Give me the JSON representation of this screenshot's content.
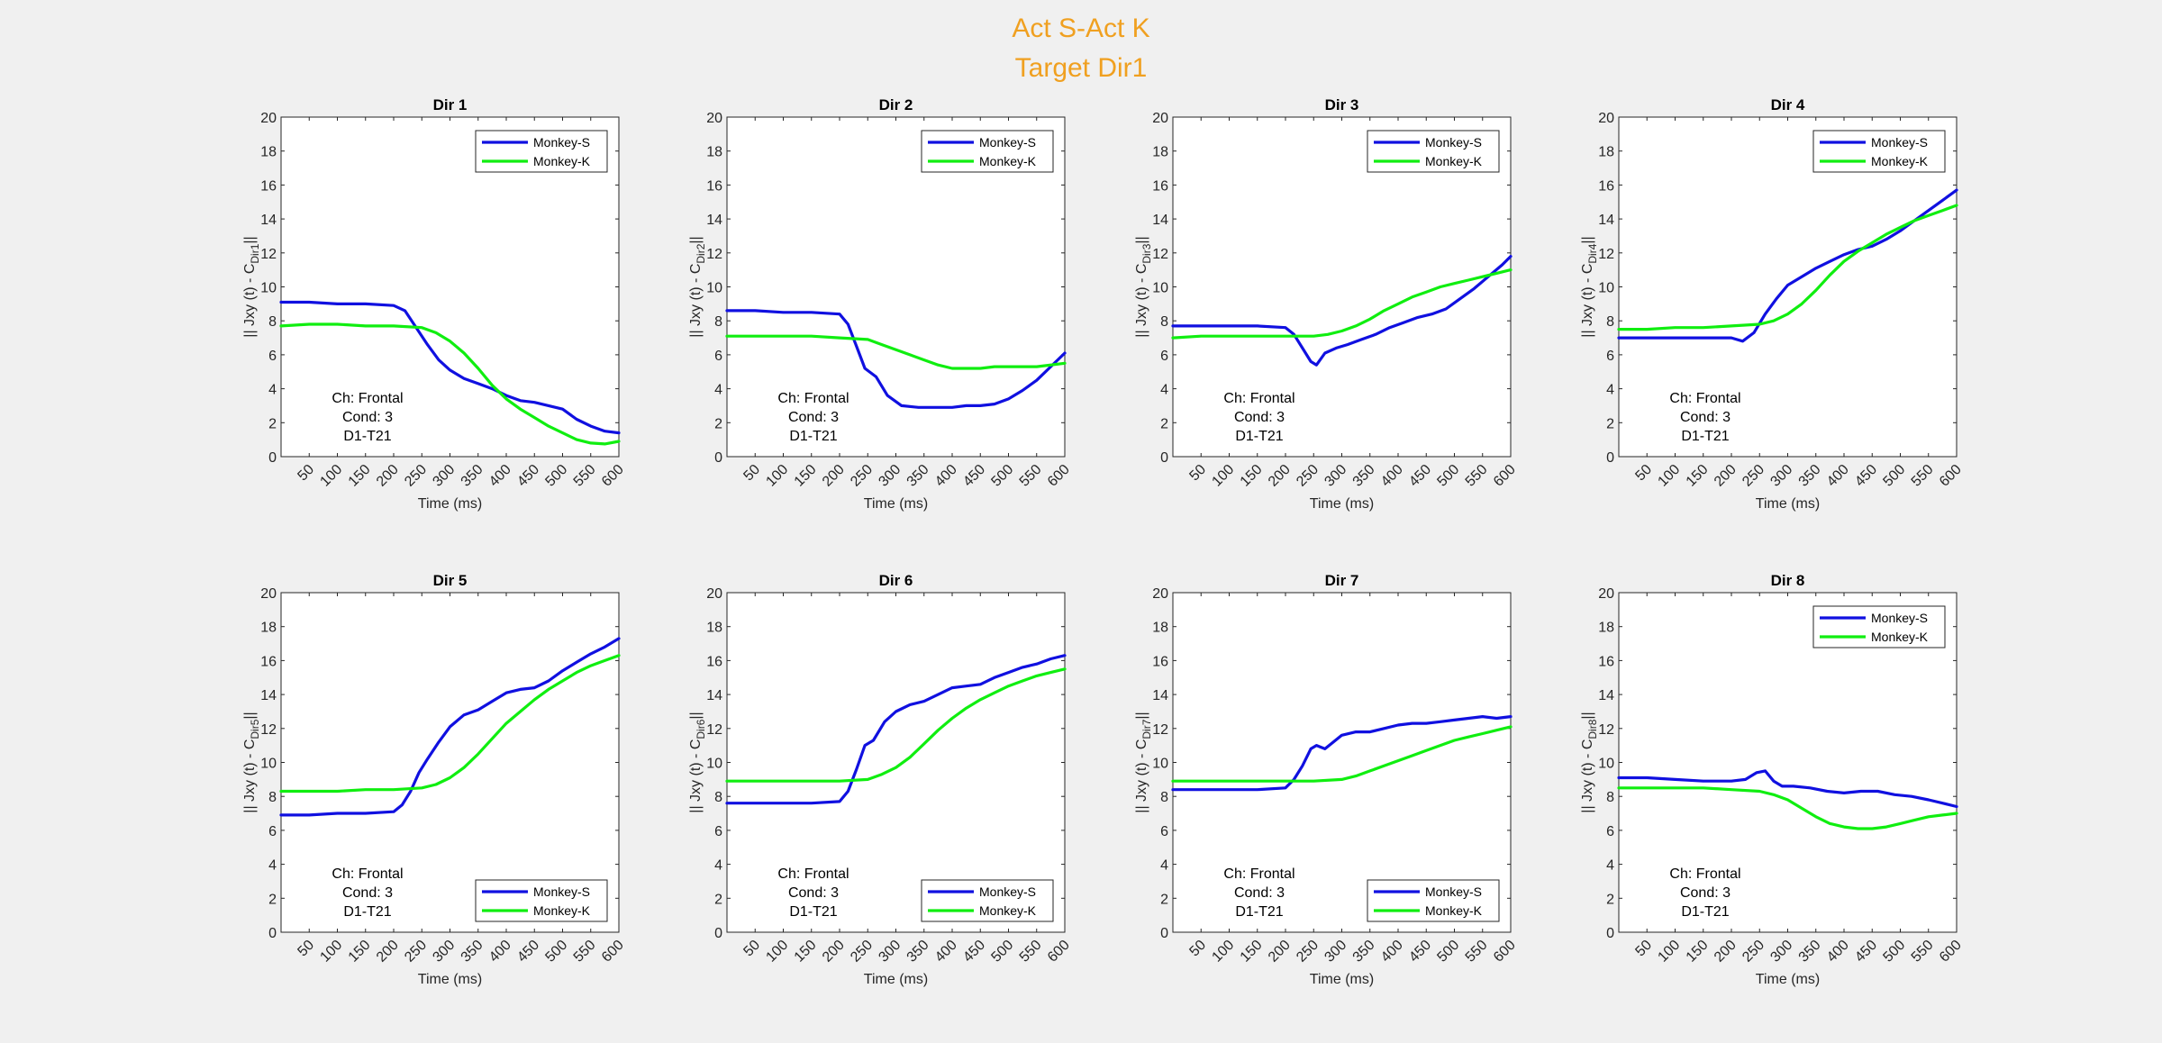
{
  "suptitle": {
    "line1": "Act S-Act K",
    "line2": "Target Dir1",
    "color": "#f0a020"
  },
  "colors": {
    "monkey_s": "#1010e0",
    "monkey_k": "#10ee10"
  },
  "chart_data": [
    {
      "type": "line",
      "title": "Dir 1",
      "xlabel": "Time (ms)",
      "ylabel_prefix": "|| Jxy (t) - C",
      "ylabel_sub": "Dir1",
      "ylabel_suffix": "||",
      "xlim": [
        0,
        600
      ],
      "ylim": [
        0,
        20
      ],
      "xticks": [
        50,
        100,
        150,
        200,
        250,
        300,
        350,
        400,
        450,
        500,
        550,
        600
      ],
      "yticks": [
        0,
        2,
        4,
        6,
        8,
        10,
        12,
        14,
        16,
        18,
        20
      ],
      "legend_loc": "top-right",
      "annotation": [
        "Ch: Frontal",
        "Cond: 3",
        "D1-T21"
      ],
      "series": [
        {
          "name": "Monkey-S",
          "x": [
            0,
            50,
            100,
            150,
            200,
            220,
            240,
            260,
            280,
            300,
            325,
            350,
            375,
            400,
            425,
            450,
            475,
            500,
            525,
            550,
            575,
            600
          ],
          "y": [
            9.1,
            9.1,
            9.0,
            9.0,
            8.9,
            8.6,
            7.6,
            6.6,
            5.7,
            5.1,
            4.6,
            4.3,
            4.0,
            3.6,
            3.3,
            3.2,
            3.0,
            2.8,
            2.2,
            1.8,
            1.5,
            1.4
          ]
        },
        {
          "name": "Monkey-K",
          "x": [
            0,
            50,
            100,
            150,
            200,
            250,
            275,
            300,
            325,
            350,
            375,
            400,
            425,
            450,
            475,
            500,
            525,
            550,
            575,
            600
          ],
          "y": [
            7.7,
            7.8,
            7.8,
            7.7,
            7.7,
            7.6,
            7.3,
            6.8,
            6.1,
            5.2,
            4.2,
            3.4,
            2.8,
            2.3,
            1.8,
            1.4,
            1.0,
            0.8,
            0.75,
            0.9
          ]
        }
      ]
    },
    {
      "type": "line",
      "title": "Dir 2",
      "xlabel": "Time (ms)",
      "ylabel_prefix": "|| Jxy (t) - C",
      "ylabel_sub": "Dir2",
      "ylabel_suffix": "||",
      "xlim": [
        0,
        600
      ],
      "ylim": [
        0,
        20
      ],
      "xticks": [
        50,
        100,
        150,
        200,
        250,
        300,
        350,
        400,
        450,
        500,
        550,
        600
      ],
      "yticks": [
        0,
        2,
        4,
        6,
        8,
        10,
        12,
        14,
        16,
        18,
        20
      ],
      "legend_loc": "top-right",
      "annotation": [
        "Ch: Frontal",
        "Cond: 3",
        "D1-T21"
      ],
      "series": [
        {
          "name": "Monkey-S",
          "x": [
            0,
            50,
            100,
            150,
            200,
            215,
            230,
            245,
            265,
            285,
            310,
            340,
            370,
            400,
            425,
            450,
            475,
            500,
            525,
            550,
            575,
            600
          ],
          "y": [
            8.6,
            8.6,
            8.5,
            8.5,
            8.4,
            7.8,
            6.5,
            5.2,
            4.7,
            3.6,
            3.0,
            2.9,
            2.9,
            2.9,
            3.0,
            3.0,
            3.1,
            3.4,
            3.9,
            4.5,
            5.3,
            6.1
          ]
        },
        {
          "name": "Monkey-K",
          "x": [
            0,
            50,
            100,
            150,
            200,
            250,
            275,
            300,
            325,
            350,
            375,
            400,
            425,
            450,
            475,
            500,
            550,
            600
          ],
          "y": [
            7.1,
            7.1,
            7.1,
            7.1,
            7.0,
            6.9,
            6.6,
            6.3,
            6.0,
            5.7,
            5.4,
            5.2,
            5.2,
            5.2,
            5.3,
            5.3,
            5.3,
            5.5
          ]
        }
      ]
    },
    {
      "type": "line",
      "title": "Dir 3",
      "xlabel": "Time (ms)",
      "ylabel_prefix": "|| Jxy (t) - C",
      "ylabel_sub": "Dir3",
      "ylabel_suffix": "||",
      "xlim": [
        0,
        600
      ],
      "ylim": [
        0,
        20
      ],
      "xticks": [
        50,
        100,
        150,
        200,
        250,
        300,
        350,
        400,
        450,
        500,
        550,
        600
      ],
      "yticks": [
        0,
        2,
        4,
        6,
        8,
        10,
        12,
        14,
        16,
        18,
        20
      ],
      "legend_loc": "top-right",
      "annotation": [
        "Ch: Frontal",
        "Cond: 3",
        "D1-T21"
      ],
      "series": [
        {
          "name": "Monkey-S",
          "x": [
            0,
            50,
            100,
            150,
            200,
            215,
            230,
            245,
            255,
            270,
            290,
            310,
            335,
            360,
            385,
            410,
            435,
            460,
            485,
            510,
            535,
            560,
            585,
            600
          ],
          "y": [
            7.7,
            7.7,
            7.7,
            7.7,
            7.6,
            7.2,
            6.4,
            5.6,
            5.4,
            6.1,
            6.4,
            6.6,
            6.9,
            7.2,
            7.6,
            7.9,
            8.2,
            8.4,
            8.7,
            9.3,
            9.9,
            10.6,
            11.3,
            11.8
          ]
        },
        {
          "name": "Monkey-K",
          "x": [
            0,
            50,
            100,
            150,
            200,
            250,
            275,
            300,
            325,
            350,
            375,
            400,
            425,
            450,
            475,
            500,
            525,
            550,
            575,
            600
          ],
          "y": [
            7.0,
            7.1,
            7.1,
            7.1,
            7.1,
            7.1,
            7.2,
            7.4,
            7.7,
            8.1,
            8.6,
            9.0,
            9.4,
            9.7,
            10.0,
            10.2,
            10.4,
            10.6,
            10.8,
            11.0
          ]
        }
      ]
    },
    {
      "type": "line",
      "title": "Dir 4",
      "xlabel": "Time (ms)",
      "ylabel_prefix": "|| Jxy (t) - C",
      "ylabel_sub": "Dir4",
      "ylabel_suffix": "||",
      "xlim": [
        0,
        600
      ],
      "ylim": [
        0,
        20
      ],
      "xticks": [
        50,
        100,
        150,
        200,
        250,
        300,
        350,
        400,
        450,
        500,
        550,
        600
      ],
      "yticks": [
        0,
        2,
        4,
        6,
        8,
        10,
        12,
        14,
        16,
        18,
        20
      ],
      "legend_loc": "top-right",
      "annotation": [
        "Ch: Frontal",
        "Cond: 3",
        "D1-T21"
      ],
      "series": [
        {
          "name": "Monkey-S",
          "x": [
            0,
            50,
            100,
            150,
            200,
            220,
            240,
            260,
            280,
            300,
            325,
            350,
            375,
            400,
            425,
            450,
            475,
            500,
            525,
            550,
            575,
            600
          ],
          "y": [
            7.0,
            7.0,
            7.0,
            7.0,
            7.0,
            6.8,
            7.3,
            8.4,
            9.3,
            10.1,
            10.6,
            11.1,
            11.5,
            11.9,
            12.2,
            12.4,
            12.8,
            13.3,
            13.9,
            14.5,
            15.1,
            15.7
          ]
        },
        {
          "name": "Monkey-K",
          "x": [
            0,
            50,
            100,
            150,
            200,
            250,
            275,
            300,
            325,
            350,
            375,
            400,
            425,
            450,
            475,
            500,
            525,
            550,
            575,
            600
          ],
          "y": [
            7.5,
            7.5,
            7.6,
            7.6,
            7.7,
            7.8,
            8.0,
            8.4,
            9.0,
            9.8,
            10.7,
            11.5,
            12.1,
            12.6,
            13.1,
            13.5,
            13.9,
            14.2,
            14.5,
            14.8
          ]
        }
      ]
    },
    {
      "type": "line",
      "title": "Dir 5",
      "xlabel": "Time (ms)",
      "ylabel_prefix": "|| Jxy (t) - C",
      "ylabel_sub": "Dir5",
      "ylabel_suffix": "||",
      "xlim": [
        0,
        600
      ],
      "ylim": [
        0,
        20
      ],
      "xticks": [
        50,
        100,
        150,
        200,
        250,
        300,
        350,
        400,
        450,
        500,
        550,
        600
      ],
      "yticks": [
        0,
        2,
        4,
        6,
        8,
        10,
        12,
        14,
        16,
        18,
        20
      ],
      "legend_loc": "bottom-right",
      "annotation": [
        "Ch: Frontal",
        "Cond: 3",
        "D1-T21"
      ],
      "series": [
        {
          "name": "Monkey-S",
          "x": [
            0,
            50,
            100,
            150,
            200,
            215,
            230,
            245,
            260,
            280,
            300,
            325,
            350,
            375,
            400,
            425,
            450,
            475,
            500,
            525,
            550,
            575,
            600
          ],
          "y": [
            6.9,
            6.9,
            7.0,
            7.0,
            7.1,
            7.5,
            8.3,
            9.4,
            10.2,
            11.2,
            12.1,
            12.8,
            13.1,
            13.6,
            14.1,
            14.3,
            14.4,
            14.8,
            15.4,
            15.9,
            16.4,
            16.8,
            17.3
          ]
        },
        {
          "name": "Monkey-K",
          "x": [
            0,
            50,
            100,
            150,
            200,
            250,
            275,
            300,
            325,
            350,
            375,
            400,
            425,
            450,
            475,
            500,
            525,
            550,
            575,
            600
          ],
          "y": [
            8.3,
            8.3,
            8.3,
            8.4,
            8.4,
            8.5,
            8.7,
            9.1,
            9.7,
            10.5,
            11.4,
            12.3,
            13.0,
            13.7,
            14.3,
            14.8,
            15.3,
            15.7,
            16.0,
            16.3
          ]
        }
      ]
    },
    {
      "type": "line",
      "title": "Dir 6",
      "xlabel": "Time (ms)",
      "ylabel_prefix": "|| Jxy (t) - C",
      "ylabel_sub": "Dir6",
      "ylabel_suffix": "||",
      "xlim": [
        0,
        600
      ],
      "ylim": [
        0,
        20
      ],
      "xticks": [
        50,
        100,
        150,
        200,
        250,
        300,
        350,
        400,
        450,
        500,
        550,
        600
      ],
      "yticks": [
        0,
        2,
        4,
        6,
        8,
        10,
        12,
        14,
        16,
        18,
        20
      ],
      "legend_loc": "bottom-right",
      "annotation": [
        "Ch: Frontal",
        "Cond: 3",
        "D1-T21"
      ],
      "series": [
        {
          "name": "Monkey-S",
          "x": [
            0,
            50,
            100,
            150,
            200,
            215,
            230,
            245,
            260,
            280,
            300,
            325,
            350,
            375,
            400,
            425,
            450,
            475,
            500,
            525,
            550,
            575,
            600
          ],
          "y": [
            7.6,
            7.6,
            7.6,
            7.6,
            7.7,
            8.3,
            9.6,
            11.0,
            11.3,
            12.4,
            13.0,
            13.4,
            13.6,
            14.0,
            14.4,
            14.5,
            14.6,
            15.0,
            15.3,
            15.6,
            15.8,
            16.1,
            16.3
          ]
        },
        {
          "name": "Monkey-K",
          "x": [
            0,
            50,
            100,
            150,
            200,
            250,
            275,
            300,
            325,
            350,
            375,
            400,
            425,
            450,
            475,
            500,
            525,
            550,
            575,
            600
          ],
          "y": [
            8.9,
            8.9,
            8.9,
            8.9,
            8.9,
            9.0,
            9.3,
            9.7,
            10.3,
            11.1,
            11.9,
            12.6,
            13.2,
            13.7,
            14.1,
            14.5,
            14.8,
            15.1,
            15.3,
            15.5
          ]
        }
      ]
    },
    {
      "type": "line",
      "title": "Dir 7",
      "xlabel": "Time (ms)",
      "ylabel_prefix": "|| Jxy (t) - C",
      "ylabel_sub": "Dir7",
      "ylabel_suffix": "||",
      "xlim": [
        0,
        600
      ],
      "ylim": [
        0,
        20
      ],
      "xticks": [
        50,
        100,
        150,
        200,
        250,
        300,
        350,
        400,
        450,
        500,
        550,
        600
      ],
      "yticks": [
        0,
        2,
        4,
        6,
        8,
        10,
        12,
        14,
        16,
        18,
        20
      ],
      "legend_loc": "bottom-right",
      "annotation": [
        "Ch: Frontal",
        "Cond: 3",
        "D1-T21"
      ],
      "series": [
        {
          "name": "Monkey-S",
          "x": [
            0,
            50,
            100,
            150,
            200,
            215,
            230,
            245,
            255,
            270,
            285,
            300,
            325,
            350,
            375,
            400,
            425,
            450,
            475,
            500,
            525,
            550,
            575,
            600
          ],
          "y": [
            8.4,
            8.4,
            8.4,
            8.4,
            8.5,
            9.0,
            9.8,
            10.8,
            11.0,
            10.8,
            11.2,
            11.6,
            11.8,
            11.8,
            12.0,
            12.2,
            12.3,
            12.3,
            12.4,
            12.5,
            12.6,
            12.7,
            12.6,
            12.7
          ]
        },
        {
          "name": "Monkey-K",
          "x": [
            0,
            50,
            100,
            150,
            200,
            250,
            300,
            325,
            350,
            375,
            400,
            425,
            450,
            475,
            500,
            525,
            550,
            575,
            600
          ],
          "y": [
            8.9,
            8.9,
            8.9,
            8.9,
            8.9,
            8.9,
            9.0,
            9.2,
            9.5,
            9.8,
            10.1,
            10.4,
            10.7,
            11.0,
            11.3,
            11.5,
            11.7,
            11.9,
            12.1
          ]
        }
      ]
    },
    {
      "type": "line",
      "title": "Dir 8",
      "xlabel": "Time (ms)",
      "ylabel_prefix": "|| Jxy (t) - C",
      "ylabel_sub": "Dir8",
      "ylabel_suffix": "||",
      "xlim": [
        0,
        600
      ],
      "ylim": [
        0,
        20
      ],
      "xticks": [
        50,
        100,
        150,
        200,
        250,
        300,
        350,
        400,
        450,
        500,
        550,
        600
      ],
      "yticks": [
        0,
        2,
        4,
        6,
        8,
        10,
        12,
        14,
        16,
        18,
        20
      ],
      "legend_loc": "top-right",
      "annotation": [
        "Ch: Frontal",
        "Cond: 3",
        "D1-T21"
      ],
      "series": [
        {
          "name": "Monkey-S",
          "x": [
            0,
            50,
            100,
            150,
            200,
            225,
            245,
            260,
            275,
            290,
            310,
            340,
            370,
            400,
            430,
            460,
            490,
            520,
            550,
            575,
            600
          ],
          "y": [
            9.1,
            9.1,
            9.0,
            8.9,
            8.9,
            9.0,
            9.4,
            9.5,
            8.9,
            8.6,
            8.6,
            8.5,
            8.3,
            8.2,
            8.3,
            8.3,
            8.1,
            8.0,
            7.8,
            7.6,
            7.4
          ]
        },
        {
          "name": "Monkey-K",
          "x": [
            0,
            50,
            100,
            150,
            200,
            250,
            275,
            300,
            325,
            350,
            375,
            400,
            425,
            450,
            475,
            500,
            525,
            550,
            575,
            600
          ],
          "y": [
            8.5,
            8.5,
            8.5,
            8.5,
            8.4,
            8.3,
            8.1,
            7.8,
            7.3,
            6.8,
            6.4,
            6.2,
            6.1,
            6.1,
            6.2,
            6.4,
            6.6,
            6.8,
            6.9,
            7.0
          ]
        }
      ]
    }
  ]
}
